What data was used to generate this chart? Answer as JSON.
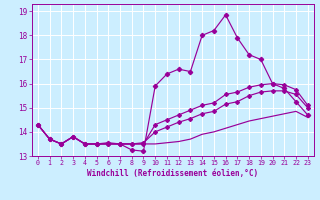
{
  "xlabel": "Windchill (Refroidissement éolien,°C)",
  "bg_color": "#cceeff",
  "line_color": "#990099",
  "grid_color": "#ffffff",
  "xlim": [
    -0.5,
    23.5
  ],
  "ylim": [
    13.0,
    19.3
  ],
  "yticks": [
    13,
    14,
    15,
    16,
    17,
    18,
    19
  ],
  "xticks": [
    0,
    1,
    2,
    3,
    4,
    5,
    6,
    7,
    8,
    9,
    10,
    11,
    12,
    13,
    14,
    15,
    16,
    17,
    18,
    19,
    20,
    21,
    22,
    23
  ],
  "line_main": [
    14.3,
    13.7,
    13.5,
    13.8,
    13.5,
    13.5,
    13.55,
    13.5,
    13.25,
    13.2,
    15.9,
    16.4,
    16.6,
    16.5,
    18.0,
    18.2,
    18.85,
    17.9,
    17.2,
    17.0,
    16.0,
    15.8,
    15.25,
    14.7
  ],
  "line_mid1": [
    14.3,
    13.7,
    13.5,
    13.8,
    13.5,
    13.5,
    13.5,
    13.5,
    13.5,
    13.5,
    14.3,
    14.5,
    14.7,
    14.9,
    15.1,
    15.2,
    15.55,
    15.65,
    15.85,
    15.95,
    16.0,
    15.95,
    15.75,
    15.1
  ],
  "line_mid2": [
    14.3,
    13.7,
    13.5,
    13.8,
    13.5,
    13.5,
    13.5,
    13.5,
    13.5,
    13.55,
    14.0,
    14.2,
    14.4,
    14.55,
    14.75,
    14.85,
    15.15,
    15.25,
    15.5,
    15.65,
    15.7,
    15.7,
    15.55,
    15.0
  ],
  "line_low": [
    14.3,
    13.7,
    13.5,
    13.8,
    13.5,
    13.5,
    13.5,
    13.5,
    13.5,
    13.5,
    13.5,
    13.55,
    13.6,
    13.7,
    13.9,
    14.0,
    14.15,
    14.3,
    14.45,
    14.55,
    14.65,
    14.75,
    14.85,
    14.6
  ]
}
